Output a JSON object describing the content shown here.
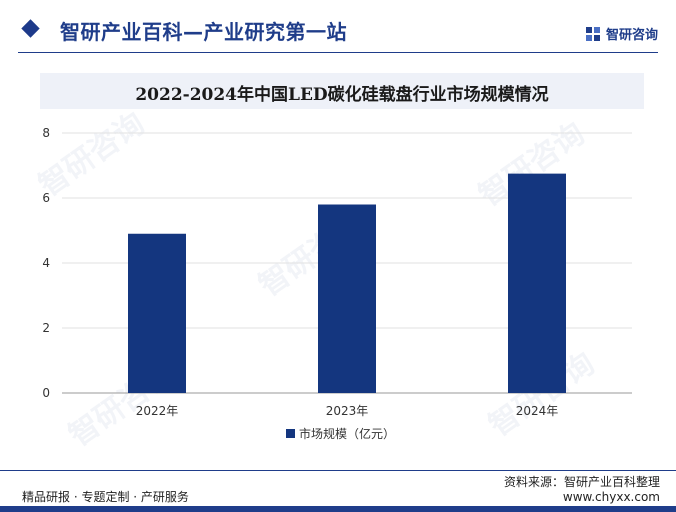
{
  "header": {
    "site_title": "智研产业百科—产业研究第一站",
    "brand": "智研咨询"
  },
  "watermark": "智研咨询",
  "colors": {
    "primary": "#1f3d8a",
    "bar": "#14367f",
    "title_band": "#eef1f8"
  },
  "chart_data": {
    "type": "bar",
    "title": "2022-2024年中国LED碳化硅载盘行业市场规模情况",
    "categories": [
      "2022年",
      "2023年",
      "2024年"
    ],
    "series": [
      {
        "name": "市场规模（亿元）",
        "values": [
          4.9,
          5.8,
          6.75
        ]
      }
    ],
    "ylim": [
      0,
      8
    ],
    "yticks": [
      0,
      2,
      4,
      6,
      8
    ],
    "grid": true,
    "legend": "bottom"
  },
  "footer": {
    "left": "精品研报 · 专题定制 · 产研服务",
    "source": "资料来源：智研产业百科整理",
    "url": "www.chyxx.com"
  }
}
